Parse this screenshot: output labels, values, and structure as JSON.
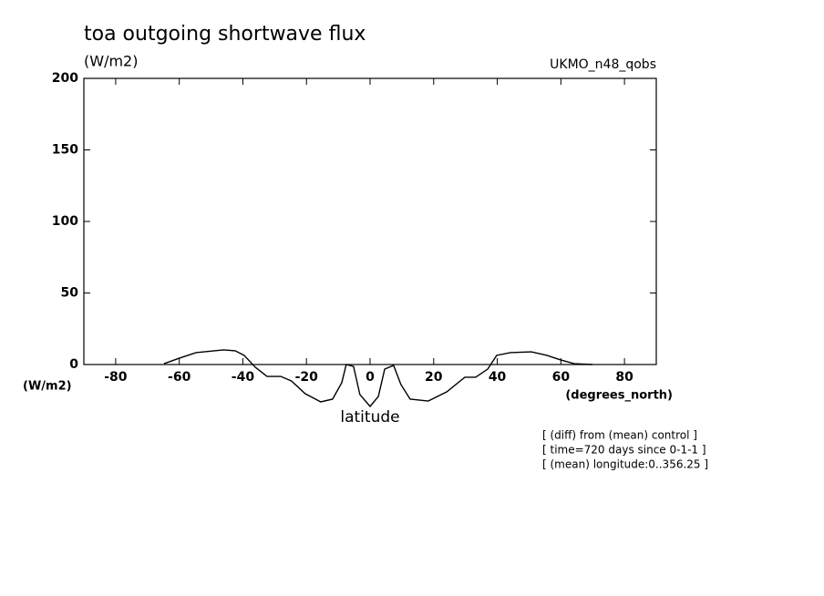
{
  "chart_data": {
    "type": "line",
    "title": "toa outgoing shortwave flux",
    "units_top": "(W/m2)",
    "units_left": "(W/m2)",
    "dataset": "UKMO_n48_qobs",
    "x_units": "(degrees_north)",
    "x_label": "latitude",
    "notes": [
      "[ (diff) from (mean) control ]",
      "[ time=720 days since 0-1-1 ]",
      "[ (mean) longitude:0..356.25 ]"
    ],
    "x": [
      -64.8,
      -59.9,
      -54.7,
      -46.1,
      -42.4,
      -39.6,
      -36.1,
      -32.4,
      -28.1,
      -24.7,
      -20.4,
      -15.5,
      -11.8,
      -8.9,
      -7.5,
      -5.2,
      -3.2,
      0,
      2.6,
      4.6,
      7.4,
      9.7,
      12.6,
      18.3,
      24.1,
      29.8,
      33.2,
      37,
      39.8,
      44.1,
      50.7,
      55.6,
      59.9,
      64.2,
      69.9
    ],
    "series": [
      {
        "color": "#000000",
        "values": [
          0.6,
          4.5,
          8.3,
          10.2,
          9.6,
          6.4,
          -1.9,
          -8.3,
          -8.3,
          -11.5,
          -20.4,
          -26.1,
          -24.2,
          -12.7,
          0,
          -1.3,
          -21,
          -29.3,
          -22.3,
          -3.2,
          -0.6,
          -14,
          -24.2,
          -25.5,
          -19.1,
          -8.9,
          -8.9,
          -3.2,
          6.4,
          8.3,
          8.9,
          6.4,
          3.2,
          0.6,
          0
        ]
      }
    ],
    "xlim": [
      -90,
      90
    ],
    "xticks": [
      -80,
      -60,
      -40,
      -20,
      0,
      20,
      40,
      60,
      80
    ],
    "ylim": [
      0,
      200
    ],
    "yticks": [
      0,
      50,
      100,
      150,
      200
    ]
  }
}
